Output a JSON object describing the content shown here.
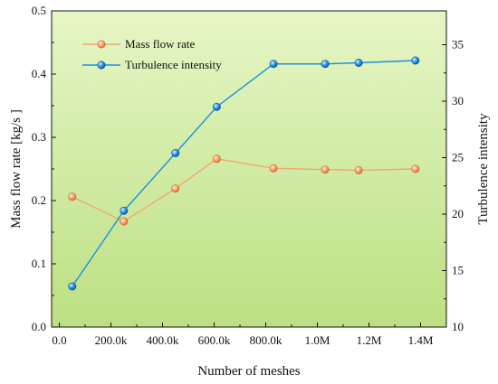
{
  "chart_data": {
    "type": "line",
    "xlabel": "Number of meshes",
    "ylabel_left": "Mass flow rate [kg/s ]",
    "ylabel_right": "Turbulence intensity",
    "xlim": [
      -30000,
      1500000
    ],
    "ylim_left": [
      0.0,
      0.5
    ],
    "ylim_right": [
      10,
      38
    ],
    "x_ticks": [
      0,
      200000,
      400000,
      600000,
      800000,
      1000000,
      1200000,
      1400000
    ],
    "x_tick_labels": [
      "0.0",
      "200.0k",
      "400.0k",
      "600.0k",
      "800.0k",
      "1.0M",
      "1.2M",
      "1.4M"
    ],
    "y_left_ticks": [
      0.0,
      0.1,
      0.2,
      0.3,
      0.4,
      0.5
    ],
    "y_left_tick_labels": [
      "0.0",
      "0.1",
      "0.2",
      "0.3",
      "0.4",
      "0.5"
    ],
    "y_right_ticks": [
      10,
      15,
      20,
      25,
      30,
      35
    ],
    "y_right_tick_labels": [
      "10",
      "15",
      "20",
      "25",
      "30",
      "35"
    ],
    "grid": false,
    "legend_position": "top-left",
    "background_gradient": [
      "#e6f6c6",
      "#bce082"
    ],
    "series": [
      {
        "name": "Mass flow rate",
        "axis": "left",
        "color": "#f4a66e",
        "x": [
          50000,
          250000,
          450000,
          610000,
          830000,
          1030000,
          1160000,
          1380000
        ],
        "values": [
          0.206,
          0.167,
          0.219,
          0.266,
          0.251,
          0.249,
          0.248,
          0.25
        ]
      },
      {
        "name": "Turbulence intensity",
        "axis": "right",
        "color": "#1c8fe0",
        "x": [
          50000,
          250000,
          450000,
          610000,
          830000,
          1030000,
          1160000,
          1380000
        ],
        "values": [
          13.6,
          20.3,
          25.4,
          29.5,
          33.3,
          33.3,
          33.4,
          33.6
        ]
      }
    ]
  }
}
